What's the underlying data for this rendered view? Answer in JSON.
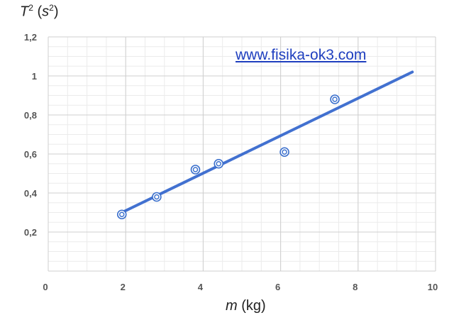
{
  "watermark": "www.fisika-ok3.com",
  "chart_data": {
    "type": "scatter",
    "title": "",
    "ylabel": {
      "symbol": "T",
      "exp": "2",
      "open": " (",
      "unit": "s",
      "unit_exp": "2",
      "close": ")"
    },
    "xlabel": {
      "symbol": "m",
      "unit": " (kg)"
    },
    "xlim": [
      0,
      10
    ],
    "ylim": [
      0,
      1.2
    ],
    "x_ticks": [
      "0",
      "2",
      "4",
      "6",
      "8",
      "10"
    ],
    "y_ticks": [
      "0,2",
      "0,4",
      "0,6",
      "0,8",
      "1",
      "1,2"
    ],
    "grid": true,
    "series": [
      {
        "type": "scatter",
        "points": [
          {
            "x": 1.9,
            "y": 0.29
          },
          {
            "x": 2.8,
            "y": 0.38
          },
          {
            "x": 3.8,
            "y": 0.52
          },
          {
            "x": 4.4,
            "y": 0.55
          },
          {
            "x": 6.1,
            "y": 0.61
          },
          {
            "x": 7.4,
            "y": 0.88
          }
        ],
        "color": "#3a6fcc"
      },
      {
        "type": "trendline",
        "from": {
          "x": 1.9,
          "y": 0.3
        },
        "to": {
          "x": 9.4,
          "y": 1.02
        },
        "color": "#2e62cc"
      }
    ]
  }
}
